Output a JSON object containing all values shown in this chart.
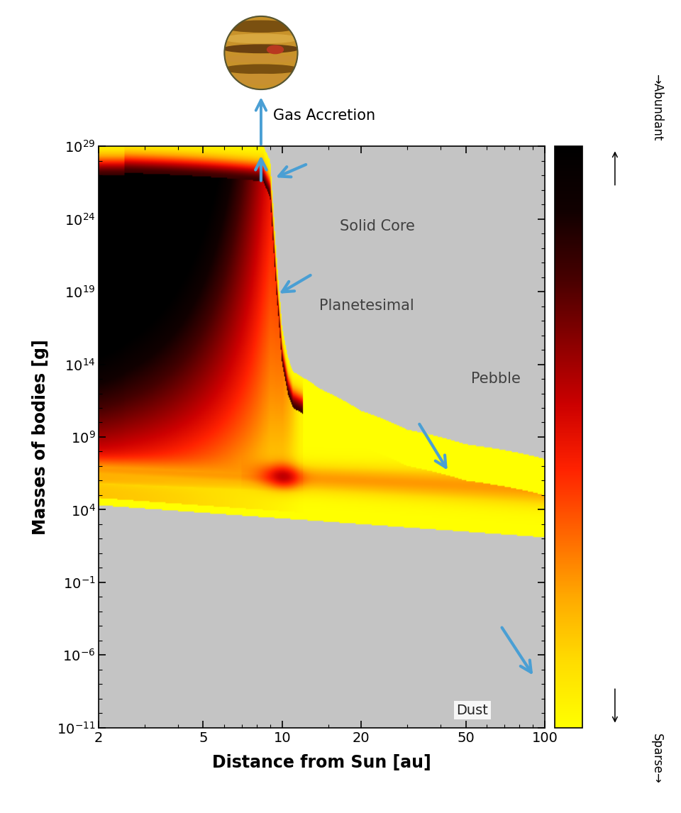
{
  "xlabel": "Distance from Sun [au]",
  "ylabel": "Masses of bodies [g]",
  "x_ticks": [
    2,
    5,
    10,
    20,
    50,
    100
  ],
  "y_ticks": [
    -11,
    -6,
    -1,
    4,
    9,
    14,
    19,
    24,
    29
  ],
  "xmin_log": 0.30103,
  "xmax_log": 2.0,
  "ymin": -11,
  "ymax": 29,
  "colorbar_top_label": "→Abundant",
  "colorbar_bottom_label": "Sparse→",
  "arrow_color": "#4a9fd4",
  "gray_r": 0.77,
  "gray_g": 0.77,
  "gray_b": 0.77,
  "label_gas_accretion": "Gas Accretion",
  "label_solid_core": "Solid Core",
  "label_planetesimal": "Planetesimal",
  "label_pebble": "Pebble",
  "label_dust": "Dust",
  "label_fontsize": 15,
  "axis_label_fontsize": 17,
  "tick_fontsize": 14,
  "cmap_colors": [
    "#ffff00",
    "#ffdd00",
    "#ffaa00",
    "#ff6600",
    "#ff2200",
    "#cc0000",
    "#880000",
    "#440000",
    "#110000",
    "#000000"
  ]
}
